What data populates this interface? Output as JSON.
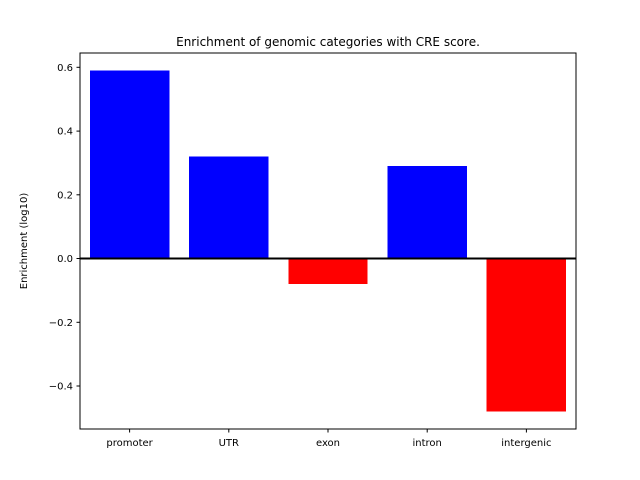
{
  "chart_data": {
    "type": "bar",
    "title": "Enrichment of genomic categories with CRE score.",
    "xlabel": "",
    "ylabel": "Enrichment (log10)",
    "categories": [
      "promoter",
      "UTR",
      "exon",
      "intron",
      "intergenic"
    ],
    "values": [
      0.59,
      0.32,
      -0.08,
      0.29,
      -0.48
    ],
    "bar_colors": [
      "#0000ff",
      "#0000ff",
      "#ff0000",
      "#0000ff",
      "#ff0000"
    ],
    "positive_color": "#0000ff",
    "negative_color": "#ff0000",
    "ylim": [
      -0.535,
      0.645
    ],
    "yticks": [
      -0.4,
      -0.2,
      0.0,
      0.2,
      0.4,
      0.6
    ],
    "zero_line_at": 0,
    "grid": false,
    "legend": null,
    "background_color": "#ffffff",
    "axis_color": "#000000"
  }
}
